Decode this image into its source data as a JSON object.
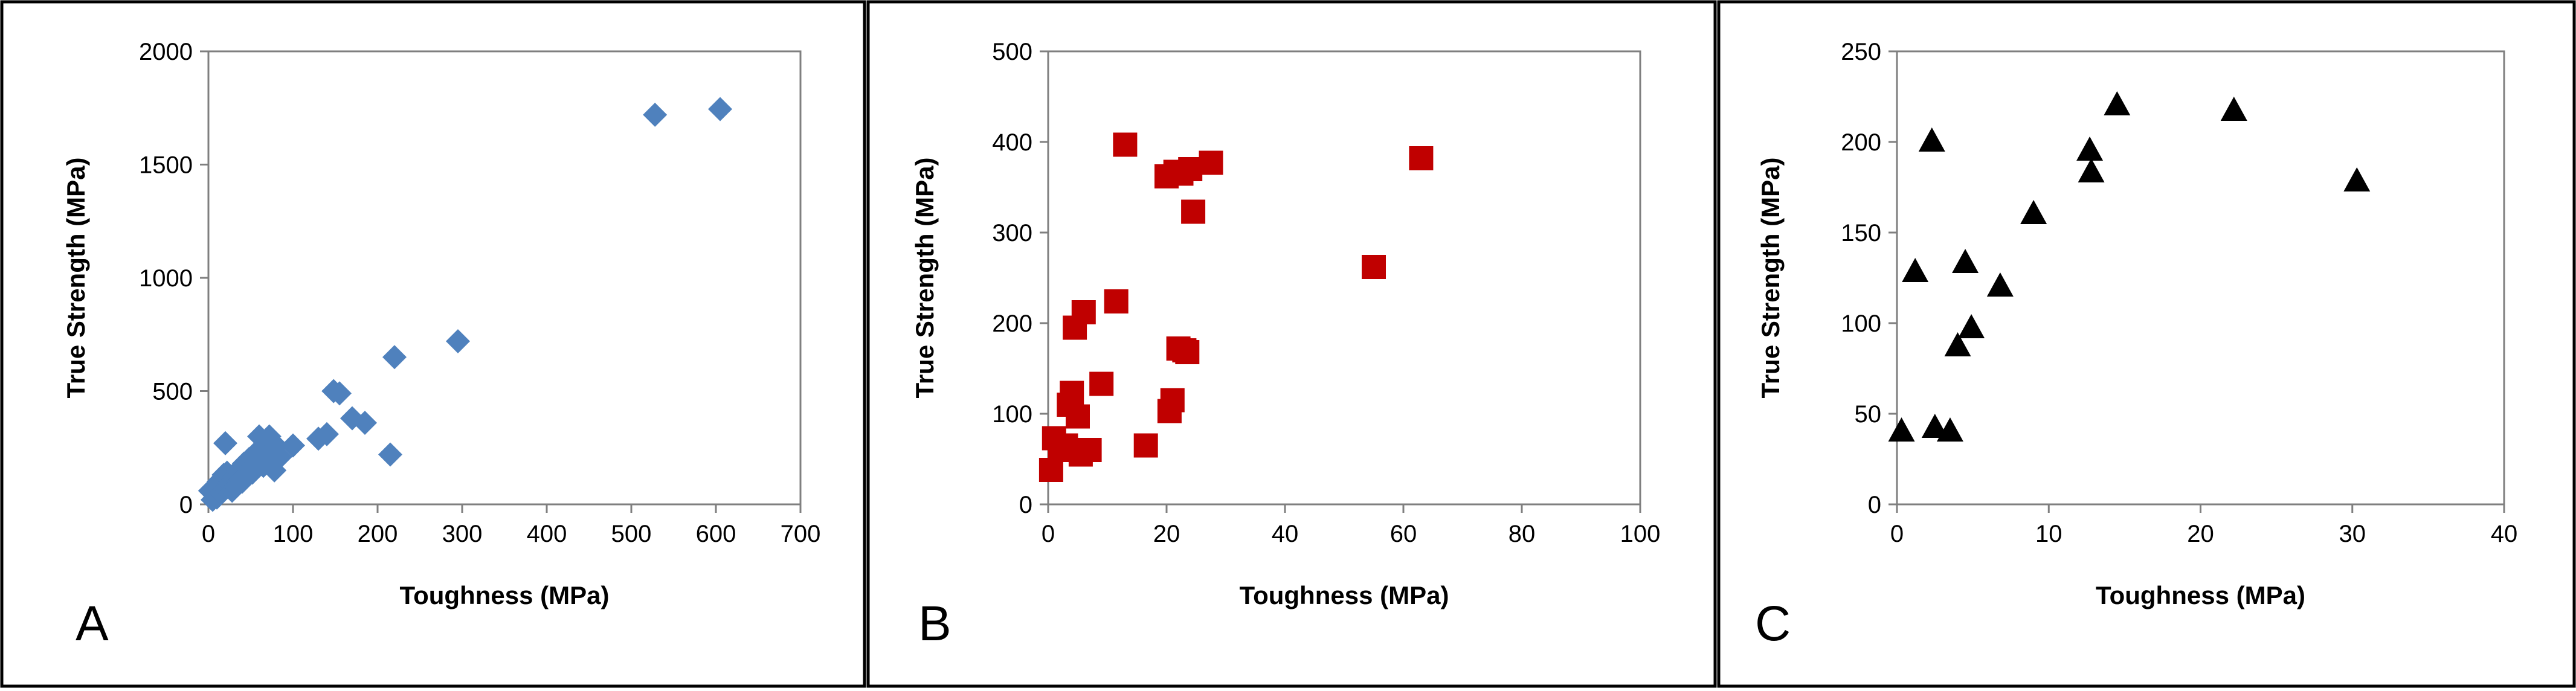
{
  "chart_data": [
    {
      "type": "scatter",
      "panel_label": "A",
      "xlabel": "Toughness (MPa)",
      "ylabel": "True Strength (MPa)",
      "xlim": [
        0,
        700
      ],
      "ylim": [
        0,
        2000
      ],
      "xticks": [
        0,
        100,
        200,
        300,
        400,
        500,
        600,
        700
      ],
      "yticks": [
        0,
        500,
        1000,
        1500,
        2000
      ],
      "grid": false,
      "marker": "diamond",
      "color": "#4f81bd",
      "x": [
        2,
        5,
        8,
        10,
        12,
        15,
        18,
        20,
        22,
        25,
        28,
        30,
        32,
        35,
        38,
        40,
        42,
        45,
        48,
        50,
        52,
        55,
        58,
        60,
        62,
        65,
        68,
        70,
        72,
        75,
        78,
        80,
        85,
        100,
        130,
        140,
        148,
        155,
        170,
        185,
        215,
        220,
        295,
        528,
        605,
        20
      ],
      "y": [
        60,
        20,
        80,
        30,
        100,
        50,
        130,
        70,
        140,
        90,
        60,
        120,
        80,
        150,
        110,
        100,
        180,
        130,
        200,
        160,
        140,
        220,
        180,
        300,
        250,
        170,
        200,
        230,
        300,
        190,
        150,
        260,
        210,
        260,
        290,
        310,
        500,
        490,
        380,
        360,
        220,
        650,
        720,
        1720,
        1745,
        270
      ]
    },
    {
      "type": "scatter",
      "panel_label": "B",
      "xlabel": "Toughness (MPa)",
      "ylabel": "True Strength (MPa)",
      "xlim": [
        0,
        100
      ],
      "ylim": [
        0,
        500
      ],
      "xticks": [
        0,
        20,
        40,
        60,
        80,
        100
      ],
      "yticks": [
        0,
        100,
        200,
        300,
        400,
        500
      ],
      "grid": false,
      "marker": "square",
      "color": "#c00000",
      "x": [
        0.5,
        1,
        2,
        3,
        3.5,
        4,
        4.5,
        5,
        5.5,
        6,
        7,
        9,
        11.5,
        13,
        16.5,
        20,
        20.5,
        21,
        21.5,
        22,
        22.5,
        23,
        23.5,
        24,
        24.5,
        27.5,
        55,
        63
      ],
      "y": [
        38,
        73,
        60,
        65,
        110,
        123,
        195,
        97,
        55,
        212,
        60,
        133,
        224,
        397,
        65,
        362,
        103,
        115,
        367,
        172,
        365,
        170,
        168,
        370,
        323,
        377,
        262,
        382
      ]
    },
    {
      "type": "scatter",
      "panel_label": "C",
      "xlabel": "Toughness (MPa)",
      "ylabel": "True Strength (MPa)",
      "xlim": [
        0,
        40
      ],
      "ylim": [
        0,
        250
      ],
      "xticks": [
        0,
        10,
        20,
        30,
        40
      ],
      "yticks": [
        0,
        50,
        100,
        150,
        200,
        250
      ],
      "grid": false,
      "marker": "triangle",
      "color": "#000000",
      "x": [
        0.3,
        1.2,
        2.3,
        2.5,
        3.5,
        4,
        4.5,
        4.9,
        6.8,
        9,
        12.7,
        12.8,
        14.5,
        22.2,
        30.3
      ],
      "y": [
        40,
        128,
        200,
        42,
        40,
        87,
        133,
        97,
        120,
        160,
        195,
        183,
        220,
        217,
        178
      ]
    }
  ]
}
